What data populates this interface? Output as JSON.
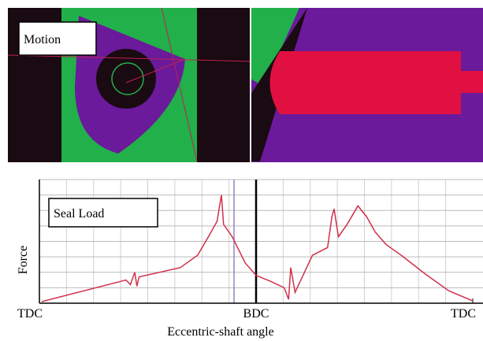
{
  "image": {
    "label": "Motion"
  },
  "chart_data": {
    "type": "line",
    "title": "Seal Load",
    "y_label": "Force",
    "x_label": "Eccentric-shaft angle",
    "x": [
      0.01,
      0.4,
      0.42,
      0.44,
      0.45,
      0.46,
      0.65,
      0.73,
      0.78,
      0.82,
      0.84,
      0.85,
      0.89,
      0.95,
      1.0,
      1.07,
      1.13,
      1.15,
      1.16,
      1.18,
      1.2,
      1.26,
      1.33,
      1.35,
      1.36,
      1.38,
      1.42,
      1.47,
      1.51,
      1.55,
      1.6,
      1.67,
      1.78,
      1.89,
      2.0
    ],
    "series": [
      {
        "name": "Seal Load",
        "color": "#d0304a",
        "values": [
          0.1,
          1.5,
          1.2,
          2.0,
          1.1,
          1.7,
          2.3,
          3.1,
          4.3,
          5.3,
          7.0,
          5.1,
          4.3,
          2.6,
          1.8,
          1.4,
          1.0,
          0.25,
          2.3,
          0.7,
          1.3,
          3.1,
          3.6,
          5.6,
          6.1,
          4.3,
          5.1,
          6.3,
          5.6,
          4.6,
          3.8,
          3.1,
          1.9,
          0.8,
          0.15
        ]
      }
    ],
    "xlim": [
      0,
      2
    ],
    "xticks": [
      {
        "value": 0,
        "label": "TDC"
      },
      {
        "value": 1,
        "label": "BDC"
      },
      {
        "value": 2,
        "label": "TDC"
      }
    ],
    "ylim": [
      0,
      8
    ],
    "yticks": [
      1,
      2,
      3,
      4,
      5,
      6,
      7,
      8
    ],
    "grid": true
  }
}
